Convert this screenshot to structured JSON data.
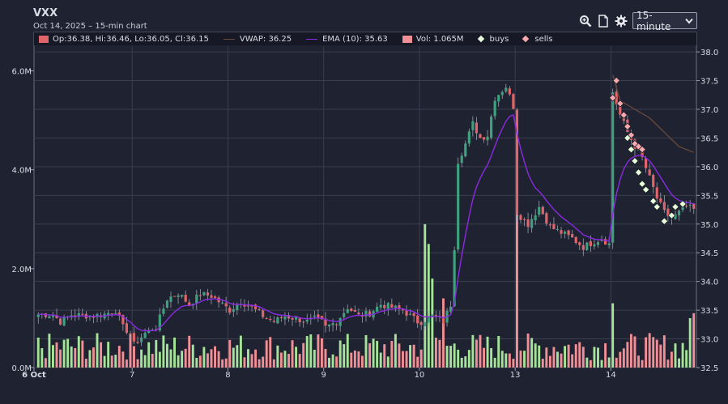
{
  "header": {
    "symbol": "VXX",
    "subtitle": "Oct 14, 2025 – 15-min chart",
    "interval": "15-minute",
    "icons": [
      "zoom-in-icon",
      "document-icon",
      "gear-icon"
    ]
  },
  "legend": {
    "ohlc": "Op:36.38, Hi:36.46, Lo:36.05, Cl:36.15",
    "vwap": "VWAP: 36.25",
    "ema": "EMA (10): 35.63",
    "vol": "Vol: 1.065M",
    "buys": "buys",
    "sells": "sells"
  },
  "colors": {
    "up": "#3fa07e",
    "down": "#e0656a",
    "vol_up": "#a6e39a",
    "vol_down": "#f08f95",
    "ema": "#8a2be2",
    "vwap": "#6b4a3a",
    "buy_marker": "#e9ffd9",
    "sell_marker": "#f9a9ad",
    "grid": "#3a3e4e",
    "background": "#1f2231"
  },
  "chart_data": {
    "type": "candlestick",
    "price_axis": {
      "ticks": [
        "32.5",
        "33.0",
        "33.5",
        "34.0",
        "34.5",
        "35.0",
        "35.5",
        "36.0",
        "36.5",
        "37.0",
        "37.5",
        "38.0"
      ],
      "range": [
        32.5,
        38.1
      ]
    },
    "volume_axis": {
      "ticks": [
        "0.0M",
        "2.0M",
        "4.0M",
        "6.0M"
      ],
      "range": [
        0,
        6.5
      ]
    },
    "x_axis": {
      "labels": [
        {
          "label": "6 Oct",
          "bar": 0
        },
        {
          "label": "7",
          "bar": 26
        },
        {
          "label": "8",
          "bar": 52
        },
        {
          "label": "9",
          "bar": 78
        },
        {
          "label": "10",
          "bar": 104
        },
        {
          "label": "13",
          "bar": 130
        },
        {
          "label": "14",
          "bar": 156
        }
      ],
      "total_bars": 179
    },
    "sessions": [
      {
        "label": "6 Oct",
        "anchors": [
          [
            0,
            33.43
          ],
          [
            4,
            33.42
          ],
          [
            6,
            33.3
          ],
          [
            9,
            33.42
          ],
          [
            12,
            33.41
          ],
          [
            15,
            33.4
          ],
          [
            18,
            33.43
          ],
          [
            21,
            33.5
          ],
          [
            23,
            33.2
          ],
          [
            25,
            33.1
          ]
        ]
      },
      {
        "label": "7",
        "anchors": [
          [
            0,
            32.9
          ],
          [
            3,
            33.1
          ],
          [
            6,
            33.2
          ],
          [
            9,
            33.7
          ],
          [
            12,
            33.8
          ],
          [
            15,
            33.6
          ],
          [
            18,
            33.78
          ],
          [
            21,
            33.75
          ],
          [
            23,
            33.65
          ],
          [
            25,
            33.55
          ]
        ]
      },
      {
        "label": "8",
        "anchors": [
          [
            0,
            33.5
          ],
          [
            3,
            33.65
          ],
          [
            6,
            33.55
          ],
          [
            9,
            33.4
          ],
          [
            12,
            33.3
          ],
          [
            15,
            33.4
          ],
          [
            18,
            33.35
          ],
          [
            21,
            33.3
          ],
          [
            23,
            33.35
          ],
          [
            25,
            33.3
          ]
        ]
      },
      {
        "label": "9",
        "anchors": [
          [
            0,
            33.2
          ],
          [
            3,
            33.3
          ],
          [
            6,
            33.55
          ],
          [
            9,
            33.4
          ],
          [
            12,
            33.45
          ],
          [
            15,
            33.6
          ],
          [
            18,
            33.55
          ],
          [
            21,
            33.5
          ],
          [
            23,
            33.4
          ],
          [
            25,
            33.3
          ]
        ]
      },
      {
        "label": "10",
        "anchors": [
          [
            0,
            33.3
          ],
          [
            3,
            33.4
          ],
          [
            6,
            33.3
          ],
          [
            8,
            33.6
          ],
          [
            9,
            34.6
          ],
          [
            10,
            36.1
          ],
          [
            12,
            36.4
          ],
          [
            14,
            36.75
          ],
          [
            16,
            36.5
          ],
          [
            18,
            36.55
          ],
          [
            20,
            37.2
          ],
          [
            23,
            37.4
          ],
          [
            25,
            37.05
          ]
        ]
      },
      {
        "label": "13",
        "anchors": [
          [
            0,
            35.2
          ],
          [
            3,
            35.0
          ],
          [
            6,
            35.3
          ],
          [
            9,
            34.95
          ],
          [
            12,
            34.85
          ],
          [
            15,
            34.75
          ],
          [
            18,
            34.6
          ],
          [
            21,
            34.7
          ],
          [
            23,
            34.75
          ],
          [
            25,
            34.65
          ]
        ]
      },
      {
        "label": "14",
        "anchors": [
          [
            0,
            37.3
          ],
          [
            2,
            36.9
          ],
          [
            4,
            36.6
          ],
          [
            6,
            36.35
          ],
          [
            8,
            36.15
          ],
          [
            10,
            35.8
          ],
          [
            12,
            35.45
          ],
          [
            14,
            35.2
          ],
          [
            16,
            35.1
          ],
          [
            18,
            35.2
          ],
          [
            20,
            35.3
          ],
          [
            22,
            35.25
          ],
          [
            23,
            36.4
          ]
        ]
      }
    ],
    "ema_period": 10,
    "vwap_series": [
      [
        156,
        37.6
      ],
      [
        158,
        37.15
      ],
      [
        162,
        37.0
      ],
      [
        166,
        36.85
      ],
      [
        170,
        36.6
      ],
      [
        174,
        36.35
      ],
      [
        178,
        36.25
      ]
    ],
    "buys": [
      [
        160,
        36.5
      ],
      [
        161,
        36.3
      ],
      [
        162,
        36.1
      ],
      [
        163,
        35.9
      ],
      [
        164,
        35.7
      ],
      [
        165,
        35.6
      ],
      [
        167,
        35.4
      ],
      [
        168,
        35.3
      ],
      [
        170,
        35.05
      ],
      [
        172,
        35.15
      ],
      [
        173,
        35.3
      ],
      [
        175,
        35.35
      ]
    ],
    "sells": [
      [
        156,
        37.2
      ],
      [
        157,
        37.5
      ],
      [
        158,
        37.1
      ],
      [
        159,
        36.9
      ],
      [
        160,
        36.7
      ],
      [
        161,
        36.55
      ],
      [
        162,
        36.4
      ],
      [
        163,
        36.35
      ],
      [
        164,
        36.3
      ]
    ],
    "volume_spikes": [
      [
        105,
        2.9
      ],
      [
        106,
        2.5
      ],
      [
        107,
        1.8
      ],
      [
        110,
        1.4
      ],
      [
        130,
        3.7
      ],
      [
        156,
        1.3
      ],
      [
        177,
        1.0
      ],
      [
        178,
        1.1
      ]
    ]
  }
}
